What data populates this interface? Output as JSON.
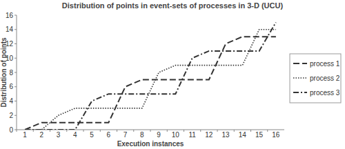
{
  "chart_data": {
    "type": "line",
    "title": "Distribution of points in event-sets of processes in 3-D (UCU)",
    "x_label": "Execution instances",
    "y_label": "Distribution of points",
    "categories": [
      "1",
      "2",
      "3",
      "4",
      "5",
      "6",
      "7",
      "8",
      "9",
      "10",
      "11",
      "12",
      "13",
      "14",
      "15",
      "16"
    ],
    "series": [
      {
        "name": "process 1",
        "color": "#333333",
        "line_style": "dashed",
        "values": [
          0,
          1,
          1,
          1,
          1,
          1,
          6,
          7,
          7,
          7,
          7,
          7,
          12,
          13,
          13,
          13
        ]
      },
      {
        "name": "process 2",
        "color": "#333333",
        "line_style": "dotted",
        "values": [
          0,
          0,
          2,
          3,
          3,
          3,
          3,
          3,
          8,
          9,
          9,
          9,
          9,
          9,
          14,
          14
        ]
      },
      {
        "name": "process 3",
        "color": "#333333",
        "line_style": "dashdot",
        "values": [
          0,
          0,
          0,
          0,
          4,
          5,
          5,
          5,
          5,
          5,
          10,
          11,
          11,
          11,
          11,
          15
        ]
      }
    ],
    "ylim": [
      0,
      16
    ],
    "yticks": [
      0,
      2,
      4,
      6,
      8,
      10,
      12,
      14,
      16
    ],
    "grid": false,
    "legend": "right"
  }
}
